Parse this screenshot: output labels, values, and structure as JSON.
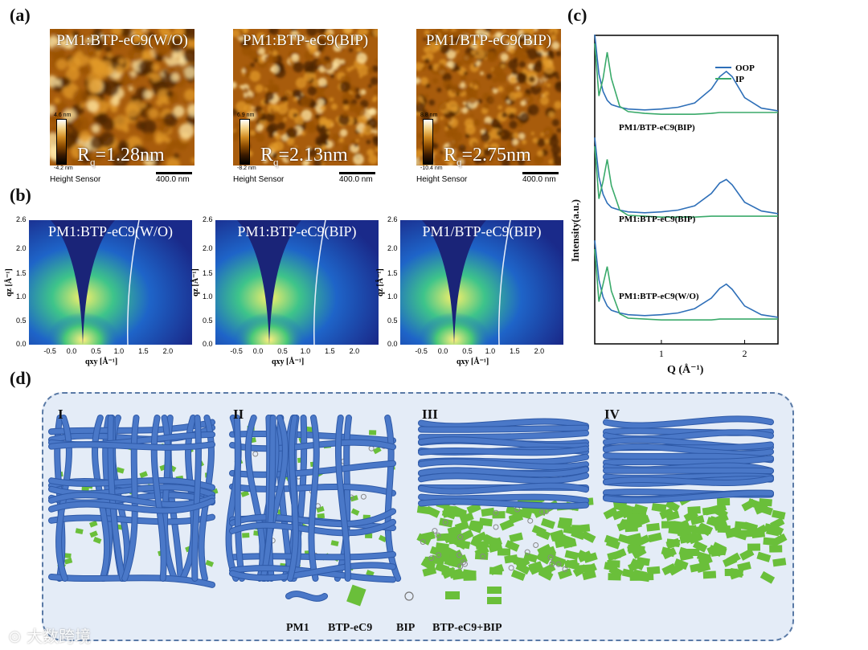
{
  "panels": {
    "a": "(a)",
    "b": "(b)",
    "c": "(c)",
    "d": "(d)"
  },
  "afm": [
    {
      "title": "PM1:BTP-eC9(W/O)",
      "scale_max": "4.6 nm",
      "scale_min": "-4.2 nm",
      "rq_label": "R",
      "rq_sub": "q",
      "rq_value": "=1.28nm",
      "sensor": "Height Sensor",
      "scalebar": "400.0 nm"
    },
    {
      "title": "PM1:BTP-eC9(BIP)",
      "scale_max": "6.9 nm",
      "scale_min": "-8.2 nm",
      "rq_label": "R",
      "rq_sub": "q",
      "rq_value": "=2.13nm",
      "sensor": "Height Sensor",
      "scalebar": "400.0 nm"
    },
    {
      "title": "PM1/BTP-eC9(BIP)",
      "scale_max": "8.8 nm",
      "scale_min": "-10.4 nm",
      "rq_label": "R",
      "rq_sub": "q",
      "rq_value": "=2.75nm",
      "sensor": "Height Sensor",
      "scalebar": "400.0 nm"
    }
  ],
  "giwaxs": [
    {
      "title": "PM1:BTP-eC9(W/O)"
    },
    {
      "title": "PM1:BTP-eC9(BIP)"
    },
    {
      "title": "PM1/BTP-eC9(BIP)"
    }
  ],
  "giwaxs_axes": {
    "ylabel": "qz [Å⁻¹]",
    "xlabel": "qxy [Å⁻¹]",
    "yticks": [
      "2.6",
      "2.0",
      "1.5",
      "1.0",
      "0.5",
      "0.0"
    ],
    "xticks": [
      "-0.5",
      "0.0",
      "0.5",
      "1.0",
      "1.5",
      "2.0"
    ]
  },
  "chart_data": {
    "type": "line",
    "xlabel": "Q (Å⁻¹)",
    "ylabel": "Intensity(a.u.)",
    "xticks": [
      "1",
      "2"
    ],
    "xlim": [
      0.2,
      2.4
    ],
    "legend": [
      "OOP",
      "IP"
    ],
    "legend_position": "top-right",
    "colors": {
      "OOP": "#2e6fb8",
      "IP": "#3aaa6a"
    },
    "series_labels": [
      "PM1/BTP-eC9(BIP)",
      "PM1:BTP-eC9(BIP)",
      "PM1:BTP-eC9(W/O)"
    ],
    "x": [
      0.2,
      0.25,
      0.3,
      0.35,
      0.4,
      0.5,
      0.6,
      0.8,
      1.0,
      1.2,
      1.4,
      1.6,
      1.7,
      1.78,
      1.85,
      2.0,
      2.2,
      2.4
    ],
    "series": [
      {
        "name": "OOP",
        "offset": 2,
        "values": [
          1.0,
          0.55,
          0.35,
          0.25,
          0.2,
          0.17,
          0.15,
          0.14,
          0.15,
          0.17,
          0.22,
          0.38,
          0.52,
          0.58,
          0.52,
          0.28,
          0.16,
          0.13
        ]
      },
      {
        "name": "IP",
        "offset": 2,
        "values": [
          0.9,
          0.3,
          0.5,
          0.8,
          0.5,
          0.18,
          0.12,
          0.1,
          0.09,
          0.09,
          0.09,
          0.1,
          0.11,
          0.11,
          0.11,
          0.11,
          0.11,
          0.11
        ]
      },
      {
        "name": "OOP",
        "offset": 1,
        "values": [
          1.0,
          0.55,
          0.35,
          0.25,
          0.2,
          0.17,
          0.15,
          0.14,
          0.15,
          0.17,
          0.22,
          0.36,
          0.48,
          0.52,
          0.46,
          0.26,
          0.16,
          0.13
        ]
      },
      {
        "name": "IP",
        "offset": 1,
        "values": [
          0.9,
          0.3,
          0.5,
          0.75,
          0.45,
          0.17,
          0.11,
          0.1,
          0.09,
          0.09,
          0.09,
          0.1,
          0.1,
          0.1,
          0.1,
          0.1,
          0.1,
          0.1
        ]
      },
      {
        "name": "OOP",
        "offset": 0,
        "values": [
          1.0,
          0.55,
          0.35,
          0.25,
          0.2,
          0.17,
          0.15,
          0.14,
          0.15,
          0.17,
          0.22,
          0.34,
          0.45,
          0.5,
          0.44,
          0.25,
          0.15,
          0.12
        ]
      },
      {
        "name": "IP",
        "offset": 0,
        "values": [
          0.9,
          0.3,
          0.5,
          0.7,
          0.42,
          0.16,
          0.11,
          0.1,
          0.09,
          0.09,
          0.09,
          0.09,
          0.1,
          0.1,
          0.1,
          0.1,
          0.1,
          0.1
        ]
      }
    ]
  },
  "schematic": {
    "stages": [
      "I",
      "II",
      "III",
      "IV"
    ],
    "legend": [
      "PM1",
      "BTP-eC9",
      "BIP",
      "BTP-eC9+BIP"
    ],
    "colors": {
      "pm1": "#4a78c8",
      "btp": "#6abf3a",
      "bip": "#cfcfcf"
    }
  },
  "watermark": "大数跨境"
}
